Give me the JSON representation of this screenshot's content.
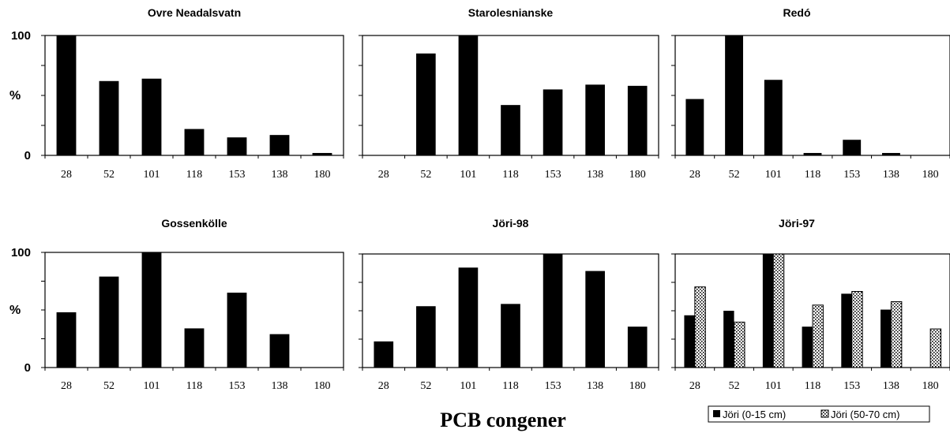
{
  "xlabel": "PCB congener",
  "colors": {
    "solid": "#000000",
    "dotted_fill": "#ffffff"
  },
  "legend": {
    "placement": "bottom-right",
    "entries": [
      "Jöri (0-15 cm)",
      "Jöri (50-70 cm)"
    ]
  },
  "chart_data": [
    {
      "type": "bar",
      "title": "Ovre Neadalsvatn",
      "categories": [
        "28",
        "52",
        "101",
        "118",
        "153",
        "138",
        "180"
      ],
      "ylabel": "%",
      "yticks": [
        "100",
        "0"
      ],
      "ylim": [
        0,
        100
      ],
      "series": [
        {
          "values": [
            100,
            62,
            64,
            22,
            15,
            17,
            2
          ]
        }
      ]
    },
    {
      "type": "bar",
      "title": "Starolesnianske",
      "categories": [
        "28",
        "52",
        "101",
        "118",
        "153",
        "138",
        "180"
      ],
      "ylabel": "",
      "yticks": [],
      "ylim": [
        0,
        100
      ],
      "series": [
        {
          "values": [
            0,
            85,
            100,
            42,
            55,
            59,
            58
          ]
        }
      ]
    },
    {
      "type": "bar",
      "title": "Redó",
      "categories": [
        "28",
        "52",
        "101",
        "118",
        "153",
        "138",
        "180"
      ],
      "ylabel": "",
      "yticks": [],
      "ylim": [
        0,
        100
      ],
      "series": [
        {
          "values": [
            47,
            100,
            63,
            2,
            13,
            2,
            0
          ]
        }
      ]
    },
    {
      "type": "bar",
      "title": "Gossenkölle",
      "categories": [
        "28",
        "52",
        "101",
        "118",
        "153",
        "138",
        "180"
      ],
      "ylabel": "%",
      "yticks": [
        "100",
        "0"
      ],
      "ylim": [
        0,
        100
      ],
      "series": [
        {
          "values": [
            48,
            79,
            100,
            34,
            65,
            29,
            0
          ]
        }
      ]
    },
    {
      "type": "bar",
      "title": "Jöri-98",
      "categories": [
        "28",
        "52",
        "101",
        "118",
        "153",
        "138",
        "180"
      ],
      "ylabel": "",
      "yticks": [],
      "ylim": [
        0,
        100
      ],
      "series": [
        {
          "values": [
            23,
            54,
            88,
            56,
            100,
            85,
            36
          ]
        }
      ]
    },
    {
      "type": "bar",
      "title": "Jöri-97",
      "categories": [
        "28",
        "52",
        "101",
        "118",
        "153",
        "138",
        "180"
      ],
      "ylabel": "",
      "yticks": [],
      "ylim": [
        0,
        100
      ],
      "series": [
        {
          "name": "Jöri (0-15 cm)",
          "values": [
            46,
            50,
            100,
            36,
            65,
            51,
            0
          ]
        },
        {
          "name": "Jöri (50-70 cm)",
          "values": [
            71,
            40,
            100,
            55,
            67,
            58,
            34
          ]
        }
      ]
    }
  ]
}
